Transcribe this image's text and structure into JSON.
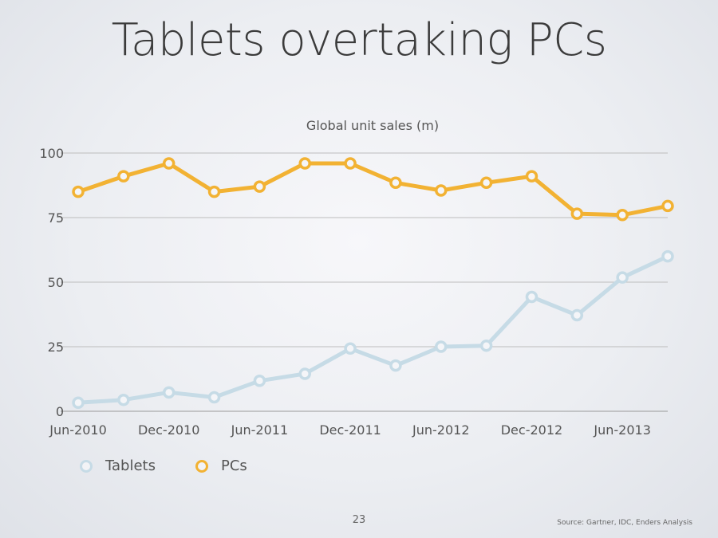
{
  "slide": {
    "title": "Tablets overtaking PCs",
    "page_number": "23",
    "source": "Source: Gartner, IDC, Enders Analysis"
  },
  "chart_data": {
    "type": "line",
    "title": "Global unit sales (m)",
    "xlabel": "",
    "ylabel": "",
    "ylim": [
      0,
      100
    ],
    "yticks": [
      0,
      25,
      50,
      75,
      100
    ],
    "grid": true,
    "legend_position": "bottom-left",
    "x": [
      "Jun-2010",
      "Sep-2010",
      "Dec-2010",
      "Mar-2011",
      "Jun-2011",
      "Sep-2011",
      "Dec-2011",
      "Mar-2012",
      "Jun-2012",
      "Sep-2012",
      "Dec-2012",
      "Mar-2013",
      "Jun-2013",
      "Sep-2013"
    ],
    "xtick_labels": [
      "Jun-2010",
      "Dec-2010",
      "Jun-2011",
      "Dec-2011",
      "Jun-2012",
      "Dec-2012",
      "Jun-2013"
    ],
    "series": [
      {
        "name": "Tablets",
        "color": "#c6dbe6",
        "values": [
          3.3,
          4.4,
          7.3,
          5.4,
          11.8,
          14.5,
          24.3,
          17.7,
          25,
          25.4,
          44.3,
          37.2,
          51.8,
          60
        ]
      },
      {
        "name": "PCs",
        "color": "#f2b233",
        "values": [
          85,
          91,
          96,
          85,
          87,
          96,
          96,
          88.5,
          85.5,
          88.5,
          91,
          76.5,
          76,
          79.5
        ]
      }
    ]
  }
}
